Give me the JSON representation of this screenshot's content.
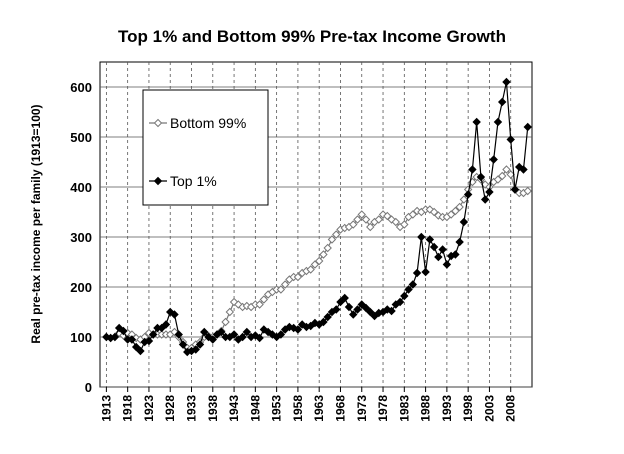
{
  "chart_data": {
    "type": "line",
    "title": "Top 1% and Bottom 99% Pre-tax Income Growth",
    "y_label": "Real pre-tax income per family (1913=100)",
    "x": [
      1913,
      1914,
      1915,
      1916,
      1917,
      1918,
      1919,
      1920,
      1921,
      1922,
      1923,
      1924,
      1925,
      1926,
      1927,
      1928,
      1929,
      1930,
      1931,
      1932,
      1933,
      1934,
      1935,
      1936,
      1937,
      1938,
      1939,
      1940,
      1941,
      1942,
      1943,
      1944,
      1945,
      1946,
      1947,
      1948,
      1949,
      1950,
      1951,
      1952,
      1953,
      1954,
      1955,
      1956,
      1957,
      1958,
      1959,
      1960,
      1961,
      1962,
      1963,
      1964,
      1965,
      1966,
      1967,
      1968,
      1969,
      1970,
      1971,
      1972,
      1973,
      1974,
      1975,
      1976,
      1977,
      1978,
      1979,
      1980,
      1981,
      1982,
      1983,
      1984,
      1985,
      1986,
      1987,
      1988,
      1989,
      1990,
      1991,
      1992,
      1993,
      1994,
      1995,
      1996,
      1997,
      1998,
      1999,
      2000,
      2001,
      2002,
      2003,
      2004,
      2005,
      2006,
      2007,
      2008,
      2009,
      2010,
      2011,
      2012
    ],
    "series": [
      {
        "name": "Bottom 99%",
        "color": "#777777",
        "fill": "#ffffff",
        "values": [
          100,
          98,
          100,
          108,
          103,
          108,
          105,
          98,
          95,
          100,
          108,
          105,
          105,
          105,
          105,
          105,
          110,
          100,
          90,
          78,
          78,
          85,
          90,
          100,
          102,
          100,
          105,
          112,
          130,
          150,
          170,
          165,
          160,
          162,
          160,
          165,
          165,
          175,
          185,
          190,
          195,
          195,
          205,
          215,
          220,
          220,
          228,
          232,
          235,
          245,
          252,
          265,
          278,
          295,
          305,
          315,
          318,
          320,
          325,
          335,
          345,
          335,
          320,
          330,
          335,
          345,
          342,
          335,
          330,
          320,
          325,
          340,
          345,
          352,
          350,
          355,
          355,
          350,
          343,
          340,
          340,
          345,
          352,
          360,
          375,
          395,
          410,
          420,
          415,
          405,
          400,
          410,
          415,
          422,
          435,
          425,
          395,
          388,
          388,
          392
        ]
      },
      {
        "name": "Top 1%",
        "color": "#000000",
        "fill": "#000000",
        "values": [
          100,
          98,
          100,
          118,
          112,
          95,
          95,
          80,
          72,
          90,
          92,
          105,
          118,
          118,
          125,
          150,
          145,
          105,
          85,
          70,
          72,
          75,
          85,
          110,
          100,
          95,
          105,
          110,
          100,
          100,
          105,
          95,
          100,
          110,
          100,
          103,
          98,
          115,
          110,
          105,
          100,
          105,
          115,
          120,
          118,
          115,
          125,
          120,
          122,
          128,
          125,
          130,
          140,
          150,
          155,
          170,
          178,
          160,
          145,
          155,
          165,
          158,
          150,
          142,
          148,
          150,
          155,
          152,
          165,
          170,
          182,
          195,
          205,
          228,
          300,
          230,
          295,
          280,
          260,
          275,
          245,
          262,
          265,
          290,
          330,
          385,
          435,
          530,
          420,
          375,
          390,
          455,
          530,
          570,
          610,
          495,
          395,
          440,
          435,
          520
        ]
      }
    ],
    "xlim": [
      1911.5,
      2013
    ],
    "xticks": [
      1913,
      1918,
      1923,
      1928,
      1933,
      1938,
      1943,
      1948,
      1953,
      1958,
      1963,
      1968,
      1973,
      1978,
      1983,
      1988,
      1993,
      1998,
      2003,
      2008
    ],
    "ylim": [
      0,
      650
    ],
    "yticks": [
      0,
      100,
      200,
      300,
      400,
      500,
      600
    ],
    "grid": true,
    "legend": "upper left"
  }
}
